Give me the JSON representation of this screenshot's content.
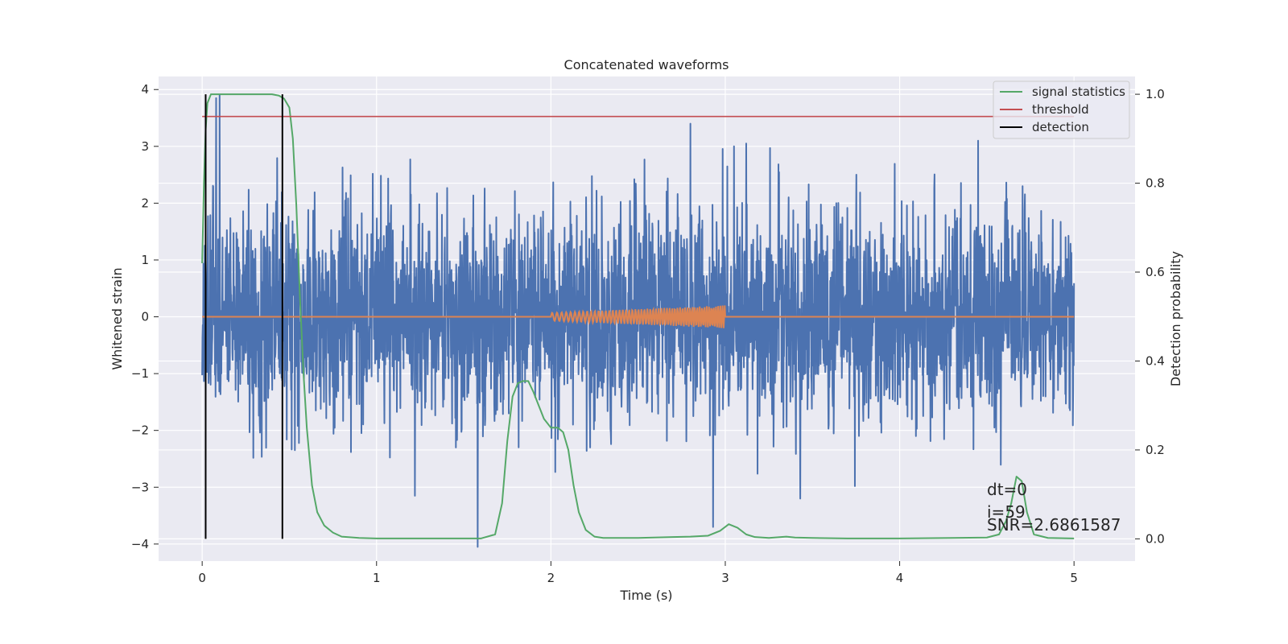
{
  "chart_data": {
    "type": "line",
    "title": "Concatenated waveforms",
    "xlabel": "Time (s)",
    "ylabel": "Whitened strain",
    "ylabel_right": "Detection probability",
    "xlim": [
      -0.25,
      5.35
    ],
    "ylim": [
      -4.3,
      4.23
    ],
    "ylim_right": [
      -0.05,
      1.04
    ],
    "grid": true,
    "background": "#eaeaf2",
    "x_ticks": [
      0,
      1,
      2,
      3,
      4,
      5
    ],
    "x_tick_labels": [
      "0",
      "1",
      "2",
      "3",
      "4",
      "5"
    ],
    "y_ticks": [
      4,
      3,
      2,
      1,
      0,
      -1,
      -2,
      -3,
      -4
    ],
    "y_tick_labels": [
      "4",
      "3",
      "2",
      "1",
      "0",
      "−1",
      "−2",
      "−3",
      "−4"
    ],
    "y_right_ticks": [
      1.0,
      0.8,
      0.6,
      0.4,
      0.2,
      0.0
    ],
    "y_right_tick_labels": [
      "1.0",
      "0.8",
      "0.6",
      "0.4",
      "0.2",
      "0.0"
    ],
    "legend_position": "top-right",
    "series": [
      {
        "name": "",
        "kind": "noise",
        "axis": "left",
        "color": "#4c72b0",
        "x_range": [
          0,
          5
        ],
        "amplitude_rms": 0.95,
        "peaks": [
          [
            0.08,
            3.85
          ],
          [
            0.1,
            3.9
          ],
          [
            2.8,
            3.4
          ],
          [
            4.45,
            3.1
          ],
          [
            3.12,
            3.05
          ],
          [
            1.58,
            -4.05
          ],
          [
            2.93,
            -3.7
          ],
          [
            1.22,
            -3.15
          ],
          [
            3.43,
            -3.2
          ]
        ]
      },
      {
        "name": "",
        "kind": "chirp",
        "axis": "left",
        "color": "#dd8452",
        "x_range": [
          0,
          5
        ],
        "chirp_range": [
          2.0,
          3.0
        ],
        "amplitude_start": 0.07,
        "amplitude_end": 0.2
      },
      {
        "name": "signal statistics",
        "axis": "right",
        "color": "#55a868",
        "x": [
          0.0,
          0.01,
          0.02,
          0.03,
          0.05,
          0.08,
          0.12,
          0.2,
          0.3,
          0.4,
          0.44,
          0.47,
          0.5,
          0.52,
          0.54,
          0.56,
          0.58,
          0.6,
          0.63,
          0.66,
          0.7,
          0.75,
          0.8,
          0.9,
          1.0,
          1.2,
          1.4,
          1.6,
          1.68,
          1.72,
          1.75,
          1.78,
          1.81,
          1.84,
          1.87,
          1.9,
          1.93,
          1.96,
          2.0,
          2.04,
          2.07,
          2.1,
          2.13,
          2.16,
          2.2,
          2.25,
          2.3,
          2.5,
          2.7,
          2.8,
          2.9,
          2.97,
          3.02,
          3.07,
          3.12,
          3.17,
          3.25,
          3.35,
          3.4,
          3.5,
          3.7,
          4.0,
          4.3,
          4.5,
          4.57,
          4.61,
          4.64,
          4.67,
          4.7,
          4.73,
          4.77,
          4.85,
          5.0
        ],
        "values": [
          0.62,
          0.8,
          0.92,
          0.98,
          1.0,
          1.0,
          1.0,
          1.0,
          1.0,
          1.0,
          0.997,
          0.99,
          0.97,
          0.9,
          0.75,
          0.55,
          0.38,
          0.25,
          0.12,
          0.06,
          0.03,
          0.014,
          0.005,
          0.002,
          0.001,
          0.001,
          0.001,
          0.001,
          0.01,
          0.08,
          0.22,
          0.32,
          0.35,
          0.355,
          0.355,
          0.33,
          0.3,
          0.27,
          0.25,
          0.25,
          0.24,
          0.2,
          0.12,
          0.06,
          0.02,
          0.005,
          0.002,
          0.002,
          0.004,
          0.005,
          0.007,
          0.018,
          0.033,
          0.025,
          0.01,
          0.004,
          0.002,
          0.005,
          0.003,
          0.002,
          0.001,
          0.001,
          0.002,
          0.003,
          0.01,
          0.04,
          0.08,
          0.14,
          0.13,
          0.06,
          0.01,
          0.002,
          0.001
        ]
      },
      {
        "name": "threshold",
        "axis": "right",
        "color": "#c44e52",
        "x": [
          0,
          5
        ],
        "values": [
          0.95,
          0.95
        ]
      },
      {
        "name": "detection",
        "axis": "right",
        "color": "#000000",
        "kind": "vlines",
        "x": [
          0.02,
          0.46
        ],
        "y_range": [
          0.0,
          1.0
        ]
      }
    ],
    "annotations": [
      "dt=0",
      "i=59",
      "SNR=2.6861587"
    ]
  }
}
